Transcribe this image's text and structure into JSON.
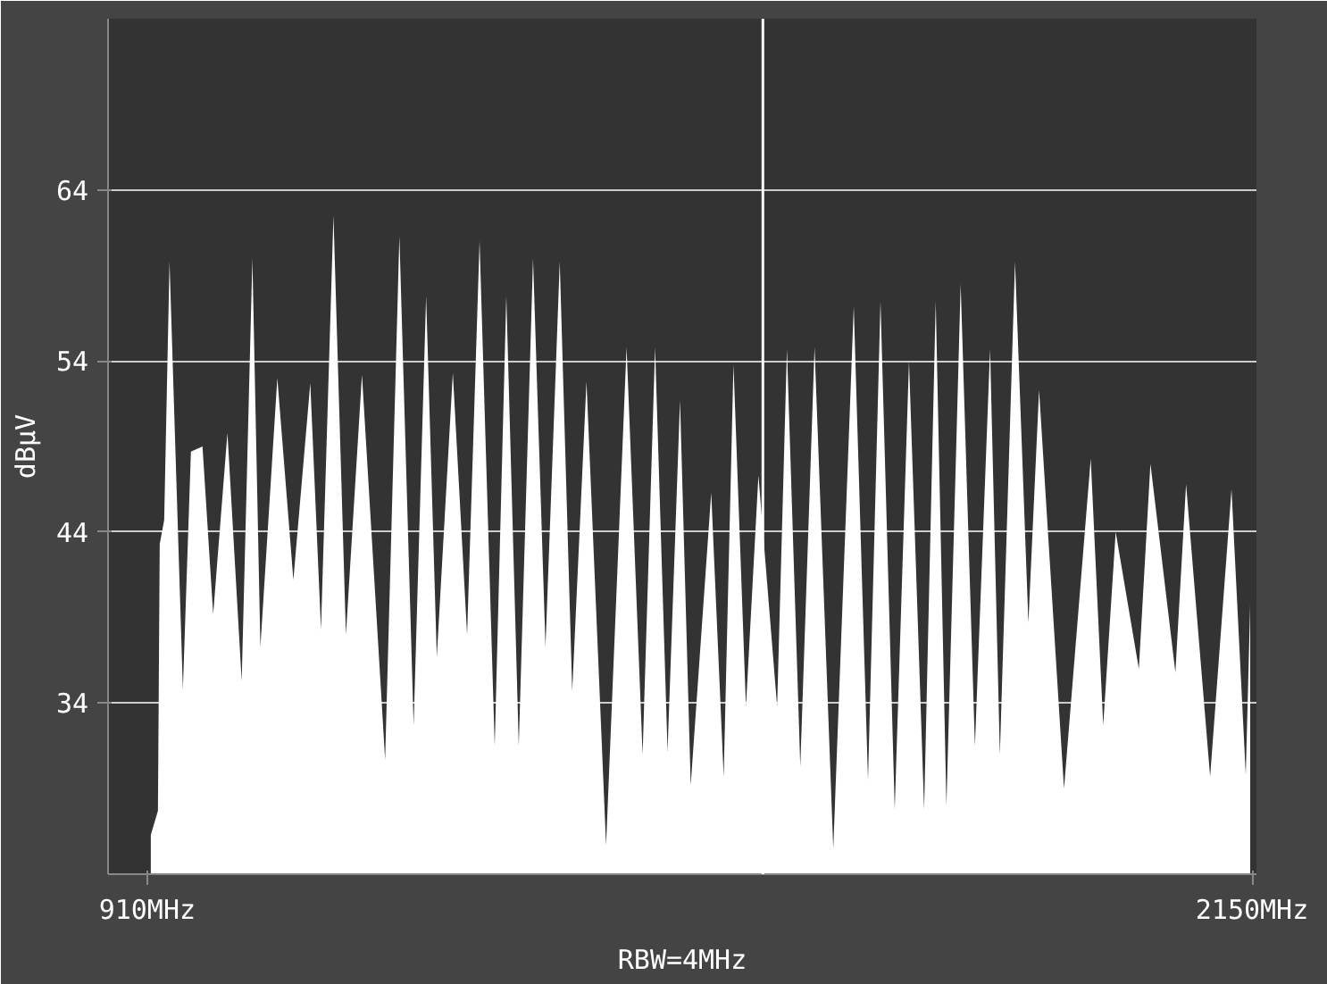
{
  "chart_data": {
    "type": "area",
    "ylabel": "dBμV",
    "annotations": [
      "RBW=4MHz"
    ],
    "x": [
      914,
      922,
      924,
      929,
      935,
      950,
      959,
      972,
      984,
      1000,
      1016,
      1028,
      1037,
      1056,
      1074,
      1093,
      1105,
      1119,
      1133,
      1151,
      1177,
      1193,
      1209,
      1223,
      1235,
      1253,
      1269,
      1283,
      1300,
      1313,
      1327,
      1343,
      1357,
      1373,
      1387,
      1403,
      1425,
      1448,
      1466,
      1480,
      1494,
      1508,
      1520,
      1543,
      1557,
      1568,
      1582,
      1596,
      1617,
      1628,
      1643,
      1659,
      1680,
      1703,
      1719,
      1733,
      1749,
      1765,
      1782,
      1795,
      1807,
      1823,
      1839,
      1856,
      1867,
      1884,
      1899,
      1911,
      1939,
      1969,
      1983,
      1997,
      2023,
      2036,
      2064,
      2076,
      2103,
      2127,
      2143,
      2148
    ],
    "series": [
      {
        "color": "#ffffff",
        "values": [
          26.3,
          27.7,
          43.3,
          44.7,
          59.8,
          34.8,
          48.7,
          49.0,
          39.2,
          49.8,
          35.3,
          60.0,
          37.3,
          53.0,
          41.2,
          52.7,
          38.3,
          62.5,
          38.0,
          53.2,
          30.7,
          61.3,
          32.7,
          57.8,
          36.7,
          53.3,
          38.0,
          61.0,
          31.5,
          57.8,
          31.5,
          60.0,
          37.3,
          59.8,
          34.7,
          52.8,
          25.7,
          54.8,
          31.0,
          54.8,
          31.2,
          51.7,
          29.2,
          46.3,
          29.7,
          53.8,
          33.8,
          47.3,
          33.8,
          54.7,
          30.3,
          54.8,
          25.5,
          57.2,
          29.5,
          57.5,
          27.8,
          54.0,
          27.8,
          57.5,
          28.0,
          58.5,
          31.5,
          54.7,
          31.0,
          59.8,
          38.7,
          52.3,
          29.0,
          48.3,
          32.7,
          44.0,
          36.0,
          48.0,
          35.8,
          46.8,
          29.7,
          46.5,
          29.8,
          39.8
        ]
      }
    ],
    "xlim": [
      866,
      2155
    ],
    "ylim": [
      24,
      74
    ],
    "xticks": [
      {
        "value": 910,
        "label": "910MHz"
      },
      {
        "value": 2150,
        "label": "2150MHz"
      }
    ],
    "yticks": [
      34,
      44,
      54,
      64
    ],
    "grid": "y",
    "ref_lines": [
      {
        "axis": "x",
        "value": 1601,
        "label": null,
        "color": "#ffffff"
      }
    ]
  }
}
